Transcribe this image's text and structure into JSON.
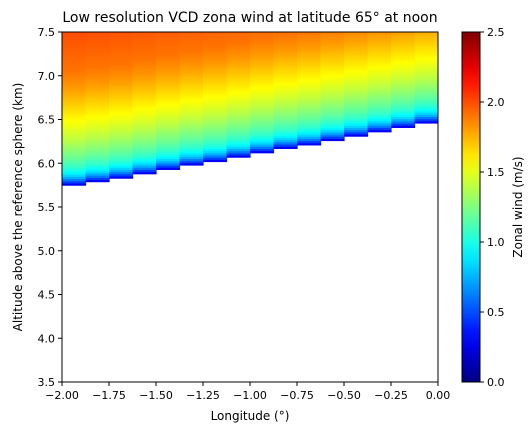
{
  "chart_data": {
    "type": "heatmap",
    "title": "Low resolution VCD zona wind at latitude 65° at noon",
    "xlabel": "Longitude (°)",
    "ylabel": "Altitude above the reference sphere (km)",
    "xlim": [
      -2.0,
      0.0
    ],
    "ylim": [
      3.5,
      7.5
    ],
    "x_ticks": [
      "−2.00",
      "−1.75",
      "−1.50",
      "−1.25",
      "−1.00",
      "−0.75",
      "−0.50",
      "−0.25",
      "0.00"
    ],
    "y_ticks": [
      "3.5",
      "4.0",
      "4.5",
      "5.0",
      "5.5",
      "6.0",
      "6.5",
      "7.0",
      "7.5"
    ],
    "colormap": "jet",
    "colorbar": {
      "label": "Zonal wind (m/s)",
      "range": [
        0.0,
        2.5
      ],
      "ticks": [
        "0.0",
        "0.5",
        "1.0",
        "1.5",
        "2.0",
        "2.5"
      ]
    },
    "surface_boundary": {
      "longitude": [
        -2.0,
        -1.875,
        -1.75,
        -1.625,
        -1.5,
        -1.375,
        -1.25,
        -1.125,
        -1.0,
        -0.875,
        -0.75,
        -0.625,
        -0.5,
        -0.375,
        -0.25,
        -0.125,
        0.0
      ],
      "altitude": [
        5.75,
        5.79,
        5.83,
        5.88,
        5.93,
        5.98,
        6.02,
        6.07,
        6.12,
        6.17,
        6.21,
        6.26,
        6.31,
        6.36,
        6.41,
        6.46,
        6.5
      ]
    },
    "wind_profile": {
      "height_above_surface_km": [
        0.0,
        0.05,
        0.1,
        0.15,
        0.2,
        0.3,
        0.4,
        0.5,
        0.65,
        0.8,
        0.95,
        1.1,
        1.3,
        1.75
      ],
      "zonal_wind_m_s": [
        0.2,
        0.55,
        0.8,
        0.95,
        1.05,
        1.18,
        1.28,
        1.38,
        1.5,
        1.6,
        1.7,
        1.8,
        1.9,
        2.0
      ]
    },
    "grid": false
  }
}
